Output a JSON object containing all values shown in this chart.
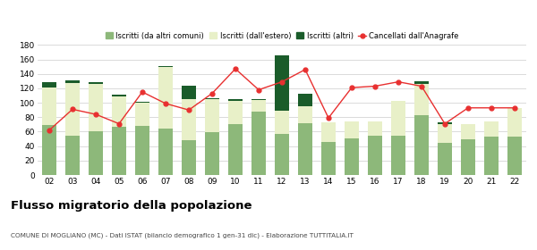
{
  "years": [
    "02",
    "03",
    "04",
    "05",
    "06",
    "07",
    "08",
    "09",
    "10",
    "11",
    "12",
    "13",
    "14",
    "15",
    "16",
    "17",
    "18",
    "19",
    "20",
    "21",
    "22"
  ],
  "iscritti_altri_comuni": [
    69,
    54,
    61,
    67,
    68,
    64,
    48,
    59,
    71,
    88,
    57,
    72,
    46,
    51,
    55,
    55,
    83,
    45,
    49,
    53,
    53
  ],
  "iscritti_estero": [
    52,
    73,
    65,
    42,
    32,
    86,
    57,
    46,
    31,
    16,
    32,
    23,
    27,
    23,
    19,
    47,
    43,
    26,
    22,
    21,
    40
  ],
  "iscritti_altri": [
    7,
    4,
    2,
    2,
    1,
    1,
    19,
    1,
    3,
    1,
    77,
    18,
    0,
    0,
    0,
    0,
    4,
    2,
    0,
    0,
    0
  ],
  "cancellati": [
    62,
    91,
    84,
    71,
    115,
    99,
    90,
    113,
    147,
    118,
    129,
    146,
    79,
    121,
    123,
    129,
    123,
    71,
    93,
    93,
    93
  ],
  "colors": {
    "iscritti_altri_comuni": "#8db87a",
    "iscritti_estero": "#e8f0c8",
    "iscritti_altri": "#1a5c2a",
    "cancellati": "#e83030",
    "grid": "#cccccc",
    "background": "#ffffff"
  },
  "legend_labels": [
    "Iscritti (da altri comuni)",
    "Iscritti (dall'estero)",
    "Iscritti (altri)",
    "Cancellati dall'Anagrafe"
  ],
  "title": "Flusso migratorio della popolazione",
  "subtitle": "COMUNE DI MOGLIANO (MC) - Dati ISTAT (bilancio demografico 1 gen-31 dic) - Elaborazione TUTTITALIA.IT",
  "ylim": [
    0,
    180
  ],
  "yticks": [
    0,
    20,
    40,
    60,
    80,
    100,
    120,
    140,
    160,
    180
  ]
}
